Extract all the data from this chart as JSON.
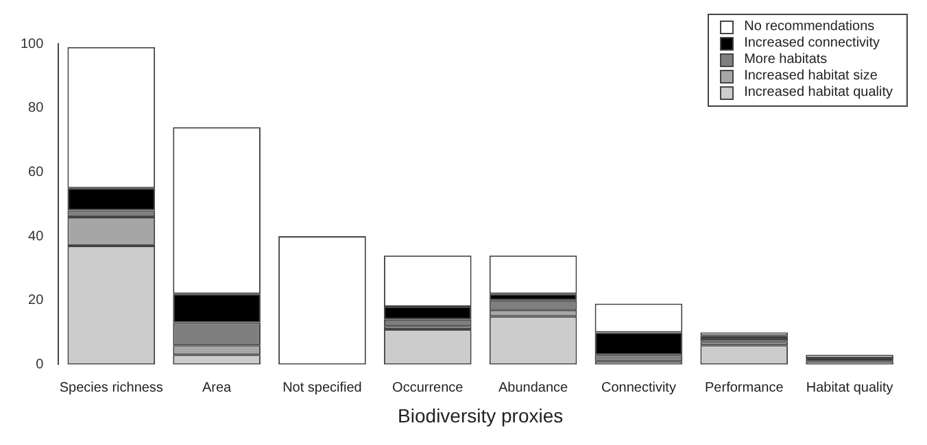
{
  "chart_data": {
    "type": "bar",
    "stacked": true,
    "xlabel": "Biodiversity proxies",
    "categories": [
      "Species richness",
      "Area",
      "Not specified",
      "Occurrence",
      "Abundance",
      "Connectivity",
      "Performance",
      "Habitat quality"
    ],
    "series": [
      {
        "name": "Increased habitat quality",
        "color": "#cccccc",
        "values": [
          37,
          3,
          0,
          11,
          15,
          1,
          6,
          1
        ]
      },
      {
        "name": "Increased habitat size",
        "color": "#a6a6a6",
        "values": [
          9,
          3,
          0,
          1,
          2,
          0,
          1,
          0
        ]
      },
      {
        "name": "More habitats",
        "color": "#7f7f7f",
        "values": [
          2,
          7,
          0,
          2,
          3,
          2,
          1,
          0
        ]
      },
      {
        "name": "Increased connectivity",
        "color": "#000000",
        "values": [
          7,
          9,
          0,
          4,
          2,
          7,
          1,
          1
        ]
      },
      {
        "name": "No recommendations",
        "color": "#ffffff",
        "values": [
          44,
          52,
          40,
          16,
          12,
          9,
          1,
          1
        ]
      }
    ],
    "ylim": [
      0,
      100
    ],
    "yticks": [
      0,
      20,
      40,
      60,
      80,
      100
    ],
    "grid": false,
    "legend": "top right"
  }
}
